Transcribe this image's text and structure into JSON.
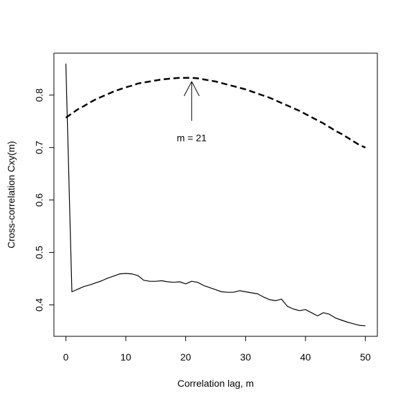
{
  "chart_data": {
    "type": "line",
    "xlabel": "Correlation lag, m",
    "ylabel": "Cross-correlation Cxy(m)",
    "xlim": [
      -2,
      52
    ],
    "ylim": [
      0.34,
      0.88
    ],
    "x_ticks": [
      0,
      10,
      20,
      30,
      40,
      50
    ],
    "x_tick_labels": [
      "0",
      "10",
      "20",
      "30",
      "40",
      "50"
    ],
    "y_ticks": [
      0.4,
      0.5,
      0.6,
      0.7,
      0.8
    ],
    "y_tick_labels": [
      "0.4",
      "0.5",
      "0.6",
      "0.7",
      "0.8"
    ],
    "grid": false,
    "legend": "none",
    "series": [
      {
        "style": "dashed",
        "color": "#000000",
        "x": [
          0,
          1,
          2,
          3,
          4,
          5,
          6,
          7,
          8,
          9,
          10,
          11,
          12,
          13,
          14,
          15,
          16,
          17,
          18,
          19,
          20,
          21,
          22,
          23,
          24,
          25,
          26,
          27,
          28,
          29,
          30,
          31,
          32,
          33,
          34,
          35,
          36,
          37,
          38,
          39,
          40,
          41,
          42,
          43,
          44,
          45,
          46,
          47,
          48,
          49,
          50
        ],
        "y": [
          0.757,
          0.765,
          0.773,
          0.779,
          0.786,
          0.792,
          0.797,
          0.802,
          0.807,
          0.811,
          0.815,
          0.818,
          0.822,
          0.824,
          0.826,
          0.828,
          0.83,
          0.831,
          0.832,
          0.833,
          0.833,
          0.833,
          0.832,
          0.83,
          0.828,
          0.826,
          0.823,
          0.82,
          0.817,
          0.814,
          0.811,
          0.807,
          0.803,
          0.799,
          0.795,
          0.79,
          0.785,
          0.78,
          0.775,
          0.77,
          0.764,
          0.758,
          0.752,
          0.746,
          0.739,
          0.732,
          0.726,
          0.719,
          0.712,
          0.705,
          0.7
        ]
      },
      {
        "style": "solid",
        "color": "#000000",
        "x": [
          0,
          1,
          2,
          3,
          4,
          5,
          6,
          7,
          8,
          9,
          10,
          11,
          12,
          13,
          14,
          15,
          16,
          17,
          18,
          19,
          20,
          21,
          22,
          23,
          24,
          25,
          26,
          27,
          28,
          29,
          30,
          31,
          32,
          33,
          34,
          35,
          36,
          37,
          38,
          39,
          40,
          41,
          42,
          43,
          44,
          45,
          46,
          47,
          48,
          49,
          50
        ],
        "y": [
          0.86,
          0.425,
          0.43,
          0.435,
          0.438,
          0.442,
          0.446,
          0.451,
          0.455,
          0.459,
          0.46,
          0.459,
          0.456,
          0.447,
          0.445,
          0.445,
          0.446,
          0.444,
          0.443,
          0.444,
          0.44,
          0.445,
          0.443,
          0.437,
          0.433,
          0.429,
          0.425,
          0.424,
          0.424,
          0.427,
          0.425,
          0.423,
          0.421,
          0.415,
          0.41,
          0.408,
          0.411,
          0.397,
          0.392,
          0.389,
          0.391,
          0.385,
          0.379,
          0.385,
          0.382,
          0.375,
          0.371,
          0.367,
          0.364,
          0.361,
          0.36
        ]
      }
    ],
    "annotations": [
      {
        "text": "m = 21",
        "arrow_to": {
          "x": 21,
          "y": 0.826
        },
        "arrow_from": {
          "x": 21,
          "y": 0.751
        },
        "label_at": {
          "x": 21,
          "y": 0.717
        }
      }
    ]
  }
}
